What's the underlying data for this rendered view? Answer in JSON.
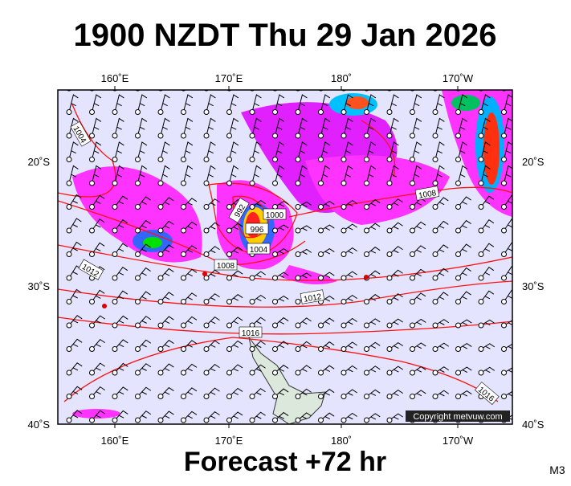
{
  "title": "1900 NZDT Thu 29 Jan 2026",
  "footer": "Forecast +72 hr",
  "model": "M3",
  "copyright": "Copyright metvuw.com",
  "axes": {
    "longitude_labels": [
      "160˚E",
      "170˚E",
      "180˚",
      "170˚W"
    ],
    "latitude_labels": [
      "20˚S",
      "30˚S",
      "40˚S"
    ]
  },
  "isobar_labels": [
    "1004",
    "1008",
    "1000",
    "992",
    "996",
    "1004",
    "1008",
    "1012",
    "1012",
    "1016",
    "1016"
  ]
}
